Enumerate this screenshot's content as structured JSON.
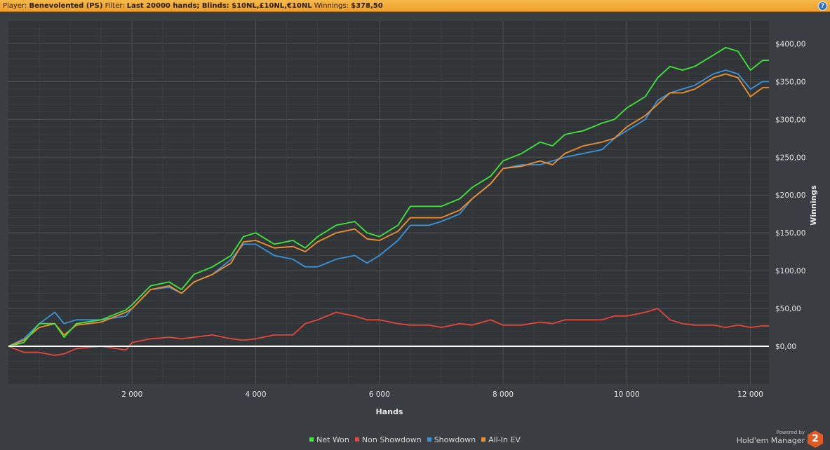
{
  "header": {
    "player_label": "Player:",
    "player_value": "Benevolented (PS)",
    "filter_label": "Filter:",
    "filter_value": "Last 20000 hands; Blinds: $10NL,£10NL,€10NL",
    "winnings_label": "Winnings:",
    "winnings_value": "$378,50",
    "help_icon": "?"
  },
  "colors": {
    "header_bg": "#f2aa35",
    "plot_bg": "#323538",
    "grid": "#4c4f53",
    "net_won": "#3ee63a",
    "non_showdown": "#e4453c",
    "showdown": "#3a92d8",
    "all_in_ev": "#f0912e",
    "zero_line": "#ffffff"
  },
  "chart_data": {
    "type": "line",
    "xlabel": "Hands",
    "ylabel": "Winnings",
    "xlim": [
      0,
      12300
    ],
    "ylim": [
      -50,
      430
    ],
    "x_ticks": [
      2000,
      4000,
      6000,
      8000,
      10000,
      12000
    ],
    "x_tick_labels": [
      "2 000",
      "4 000",
      "6 000",
      "8 000",
      "10 000",
      "12 000"
    ],
    "y_ticks": [
      0,
      50,
      100,
      150,
      200,
      250,
      300,
      350,
      400
    ],
    "y_tick_labels": [
      "$0,00",
      "$50,00",
      "$100,00",
      "$150,00",
      "$200,00",
      "$250,00",
      "$300,00",
      "$350,00",
      "$400,00"
    ],
    "grid": true,
    "legend_position": "bottom-center",
    "x": [
      0,
      250,
      500,
      750,
      900,
      1100,
      1500,
      1900,
      2000,
      2300,
      2600,
      2800,
      3000,
      3300,
      3600,
      3800,
      4000,
      4300,
      4600,
      4800,
      5000,
      5300,
      5600,
      5800,
      6000,
      6300,
      6500,
      6800,
      7000,
      7300,
      7500,
      7800,
      8000,
      8300,
      8600,
      8800,
      9000,
      9300,
      9600,
      9800,
      10000,
      10300,
      10500,
      10700,
      10900,
      11100,
      11400,
      11600,
      11800,
      12000,
      12200,
      12300
    ],
    "series": [
      {
        "name": "Net Won",
        "values": [
          0,
          5,
          30,
          30,
          12,
          30,
          35,
          48,
          55,
          80,
          85,
          75,
          95,
          105,
          120,
          145,
          150,
          135,
          140,
          130,
          145,
          160,
          165,
          150,
          145,
          160,
          185,
          185,
          185,
          195,
          210,
          225,
          245,
          255,
          270,
          265,
          280,
          285,
          295,
          300,
          315,
          330,
          355,
          370,
          365,
          370,
          385,
          395,
          390,
          365,
          378,
          378
        ]
      },
      {
        "name": "Non Showdown",
        "values": [
          0,
          -8,
          -8,
          -12,
          -10,
          -3,
          0,
          -5,
          5,
          10,
          12,
          10,
          12,
          15,
          10,
          8,
          10,
          15,
          15,
          30,
          35,
          45,
          40,
          35,
          35,
          30,
          28,
          28,
          25,
          30,
          28,
          35,
          28,
          28,
          32,
          30,
          35,
          35,
          35,
          40,
          40,
          45,
          50,
          35,
          30,
          28,
          28,
          25,
          28,
          25,
          27,
          27
        ]
      },
      {
        "name": "Showdown",
        "values": [
          0,
          10,
          30,
          45,
          30,
          35,
          35,
          40,
          50,
          75,
          78,
          70,
          85,
          95,
          115,
          135,
          135,
          120,
          115,
          105,
          105,
          115,
          120,
          110,
          120,
          140,
          160,
          160,
          165,
          175,
          195,
          215,
          235,
          240,
          240,
          245,
          250,
          255,
          260,
          275,
          285,
          300,
          325,
          335,
          340,
          345,
          360,
          365,
          360,
          340,
          350,
          350
        ]
      },
      {
        "name": "All-In EV",
        "values": [
          0,
          8,
          25,
          30,
          15,
          28,
          32,
          45,
          50,
          75,
          80,
          70,
          85,
          95,
          110,
          138,
          140,
          130,
          132,
          125,
          138,
          150,
          155,
          142,
          140,
          152,
          170,
          170,
          170,
          180,
          195,
          215,
          235,
          238,
          245,
          240,
          255,
          265,
          270,
          275,
          290,
          305,
          320,
          335,
          335,
          340,
          355,
          360,
          355,
          330,
          342,
          342
        ]
      }
    ]
  },
  "brand": {
    "powered_by": "Powered by",
    "name": "Hold'em Manager",
    "logo_number": "2"
  }
}
